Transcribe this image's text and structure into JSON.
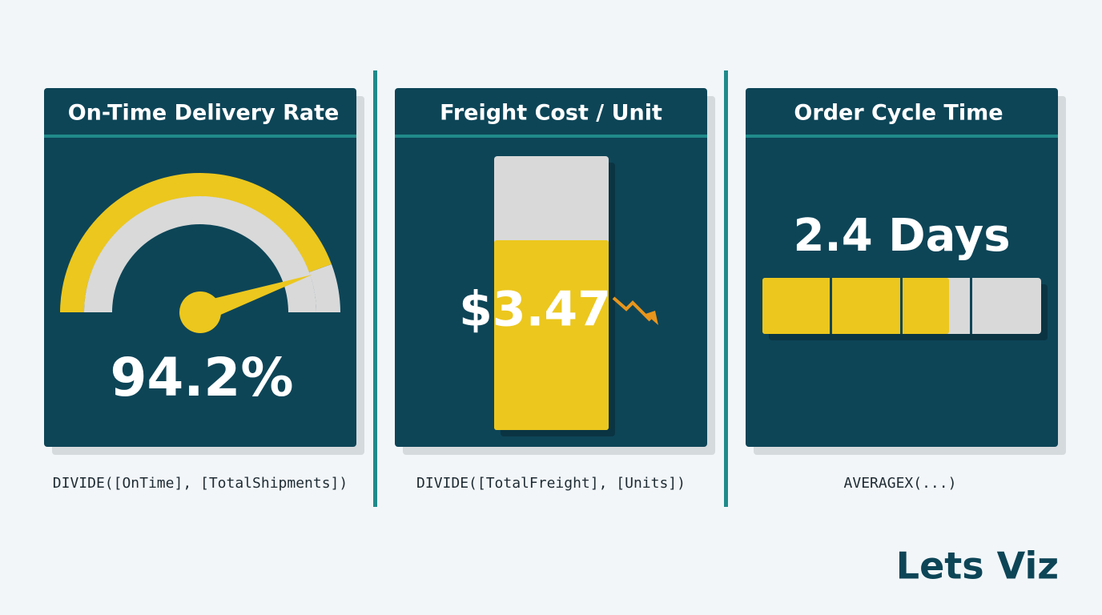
{
  "cards": [
    {
      "title": "On-Time Delivery Rate",
      "value": "94.2%",
      "formula": "DIVIDE([OnTime], [TotalShipments])"
    },
    {
      "title": "Freight Cost / Unit",
      "value": "$3.47",
      "formula": "DIVIDE([TotalFreight], [Units])"
    },
    {
      "title": "Order Cycle Time",
      "value": "2.4 Days",
      "formula": "AVERAGEX(...)"
    }
  ],
  "brand": "Lets Viz"
}
